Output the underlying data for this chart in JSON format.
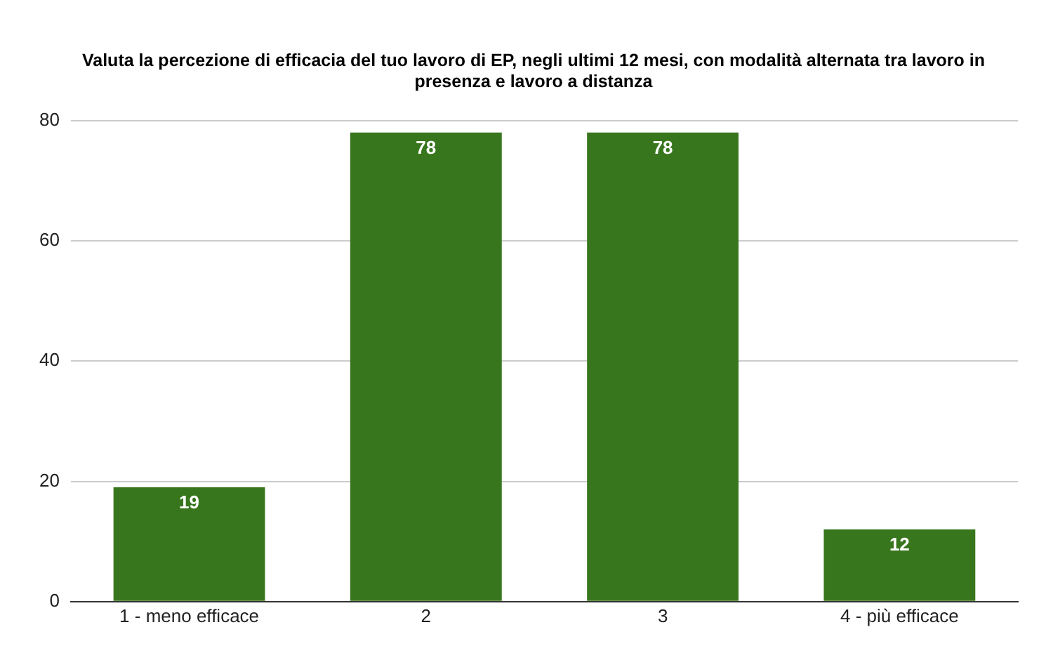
{
  "chart_data": {
    "type": "bar",
    "title": "Valuta la percezione di efficacia del tuo lavoro di EP, negli ultimi 12 mesi, con modalità alternata tra lavoro in presenza e lavoro a distanza",
    "categories": [
      "1 - meno efficace",
      "2",
      "3",
      "4 - più efficace"
    ],
    "values": [
      19,
      78,
      78,
      12
    ],
    "color": "#38761d",
    "ylim": [
      0,
      80
    ],
    "yticks": [
      0,
      20,
      40,
      60,
      80
    ],
    "grid": "y",
    "data_labels": true
  }
}
